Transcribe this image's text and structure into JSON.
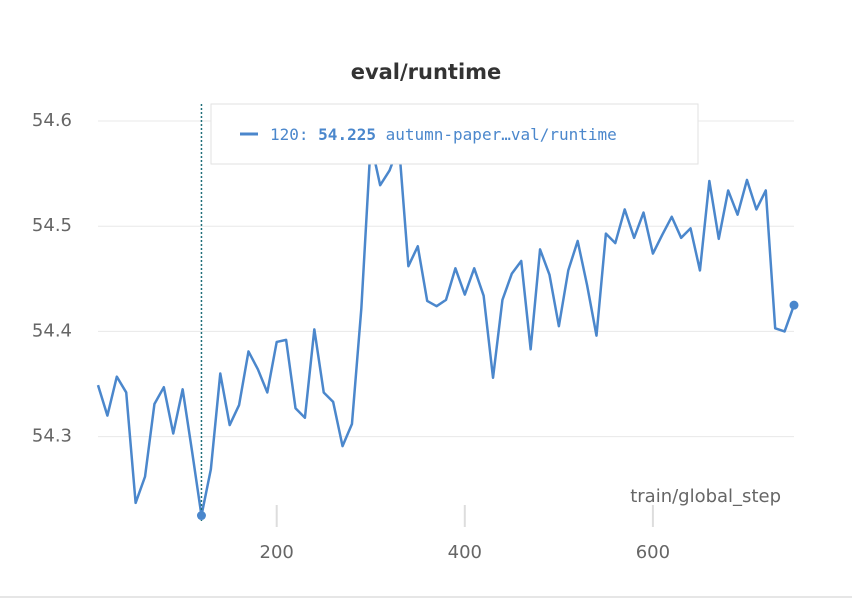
{
  "chart_data": {
    "type": "line",
    "title": "eval/runtime",
    "x_label": "train/global_step",
    "x": [
      10,
      20,
      30,
      40,
      50,
      60,
      70,
      80,
      90,
      100,
      110,
      120,
      130,
      140,
      150,
      160,
      170,
      180,
      190,
      200,
      210,
      220,
      230,
      240,
      250,
      260,
      270,
      280,
      290,
      300,
      310,
      320,
      330,
      340,
      350,
      360,
      370,
      380,
      390,
      400,
      410,
      420,
      430,
      440,
      450,
      460,
      470,
      480,
      490,
      500,
      510,
      520,
      530,
      540,
      550,
      560,
      570,
      580,
      590,
      600,
      610,
      620,
      630,
      640,
      650,
      660,
      670,
      680,
      690,
      700,
      710,
      720,
      730,
      740,
      750
    ],
    "series": [
      {
        "name": "autumn-paper…val/runtime",
        "color": "#4b87cc",
        "values": [
          54.349,
          54.32,
          54.357,
          54.342,
          54.237,
          54.262,
          54.331,
          54.347,
          54.303,
          54.345,
          54.286,
          54.225,
          54.269,
          54.36,
          54.311,
          54.33,
          54.381,
          54.364,
          54.342,
          54.39,
          54.392,
          54.327,
          54.318,
          54.402,
          54.342,
          54.333,
          54.291,
          54.312,
          54.422,
          54.58,
          54.539,
          54.553,
          54.577,
          54.462,
          54.481,
          54.429,
          54.424,
          54.43,
          54.46,
          54.435,
          54.46,
          54.434,
          54.356,
          54.43,
          54.455,
          54.467,
          54.383,
          54.478,
          54.454,
          54.405,
          54.458,
          54.486,
          54.444,
          54.396,
          54.493,
          54.484,
          54.516,
          54.489,
          54.513,
          54.474,
          54.492,
          54.509,
          54.489,
          54.498,
          54.458,
          54.543,
          54.488,
          54.534,
          54.511,
          54.544,
          54.516,
          54.534,
          54.403,
          54.4,
          54.425
        ]
      }
    ],
    "xlim": [
      10,
      750
    ],
    "xticks": [
      200,
      400,
      600
    ],
    "ylim": [
      54.216,
      54.62
    ],
    "yticks": [
      54.3,
      54.4,
      54.5,
      54.6
    ],
    "grid": true,
    "tooltip": {
      "step": "120:",
      "value": "54.225",
      "series": "autumn-paper…val/runtime"
    }
  }
}
